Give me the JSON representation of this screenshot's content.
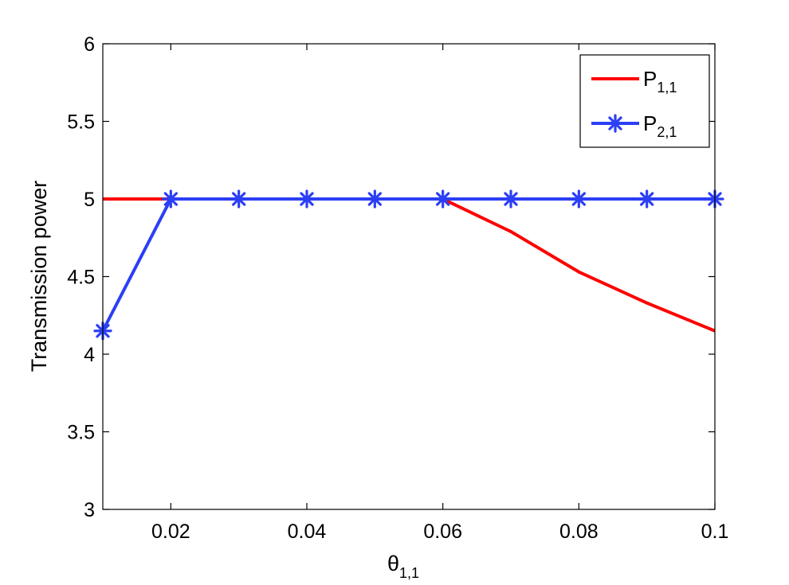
{
  "chart_data": {
    "type": "line",
    "xlabel": "θ",
    "xlabel_sub": "1,1",
    "ylabel": "Transmission power",
    "xlim": [
      0.01,
      0.1
    ],
    "ylim": [
      3,
      6
    ],
    "x_ticks": [
      0.02,
      0.04,
      0.06,
      0.08,
      0.1
    ],
    "x_tick_labels": [
      "0.02",
      "0.04",
      "0.06",
      "0.08",
      "0.1"
    ],
    "y_ticks": [
      3,
      3.5,
      4,
      4.5,
      5,
      5.5,
      6
    ],
    "y_tick_labels": [
      "3",
      "3.5",
      "4",
      "4.5",
      "5",
      "5.5",
      "6"
    ],
    "grid": false,
    "legend_position": "top-right",
    "x": [
      0.01,
      0.02,
      0.03,
      0.04,
      0.05,
      0.06,
      0.07,
      0.08,
      0.09,
      0.1
    ],
    "series": [
      {
        "name": "P",
        "name_sub": "1,1",
        "color": "#ff0000",
        "marker": "none",
        "values": [
          5,
          5,
          5,
          5,
          5,
          5,
          4.79,
          4.53,
          4.33,
          4.15
        ]
      },
      {
        "name": "P",
        "name_sub": "2,1",
        "color": "#2b3ff5",
        "marker": "asterisk",
        "values": [
          4.15,
          5,
          5,
          5,
          5,
          5,
          5,
          5,
          5,
          5
        ]
      }
    ]
  }
}
